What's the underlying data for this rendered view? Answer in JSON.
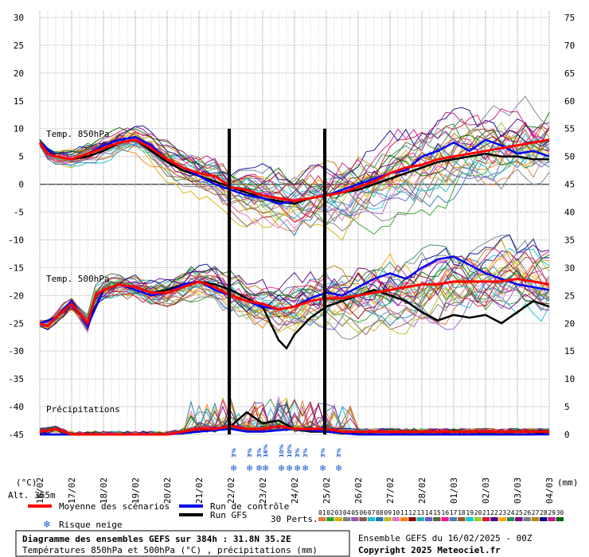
{
  "chart_data": {
    "type": "line",
    "title": "Diagramme des ensembles GEFS sur 384h : 31.8N 35.2E",
    "subtitle": "Températures 850hPa et 500hPa (°C) , précipitations (mm)",
    "run_info": "Ensemble GEFS du 16/02/2025 - 00Z",
    "copyright": "Copyright 2025 Meteociel.fr",
    "altitude": "Alt. 365m",
    "left_unit": "(°C)",
    "right_unit": "(mm)",
    "y_left": {
      "range": [
        -45,
        30
      ],
      "ticks": [
        30,
        25,
        20,
        15,
        10,
        5,
        0,
        -5,
        -10,
        -15,
        -20,
        -25,
        -30,
        -35,
        -40,
        -45
      ]
    },
    "y_right": {
      "range": [
        0,
        75
      ],
      "ticks": [
        75,
        70,
        65,
        60,
        55,
        50,
        45,
        40,
        35,
        30,
        25,
        20,
        15,
        10,
        5,
        0
      ]
    },
    "x_ticks": [
      "16/02",
      "17/02",
      "18/02",
      "19/02",
      "20/02",
      "21/02",
      "22/02",
      "23/02",
      "24/02",
      "25/02",
      "26/02",
      "27/02",
      "28/02",
      "01/03",
      "02/03",
      "03/03",
      "04/03"
    ],
    "panel_labels": {
      "t850": "Temp. 850hPa",
      "t500": "Temp. 500hPa",
      "precip": "Précipitations"
    },
    "vertical_markers": [
      "22/02",
      "25/02"
    ],
    "grid": true,
    "legend": {
      "mean": "Moyenne des scénarios",
      "control": "Run de contrôle",
      "gfs": "Run GFS",
      "snow": "Risque neige",
      "perts": "30 Perts.",
      "pert_labels": [
        "01",
        "02",
        "03",
        "04",
        "05",
        "06",
        "07",
        "08",
        "09",
        "10",
        "11",
        "12",
        "13",
        "14",
        "15",
        "16",
        "17",
        "18",
        "19",
        "20",
        "21",
        "22",
        "23",
        "24",
        "25",
        "26",
        "27",
        "28",
        "29",
        "30"
      ],
      "pert_colors": [
        "#e07b39",
        "#2ca02c",
        "#d4b000",
        "#7f7f7f",
        "#9b59b6",
        "#8c564b",
        "#17becf",
        "#1f77b4",
        "#bcbd22",
        "#e377c2",
        "#ff7f0e",
        "#8b0000",
        "#20b2aa",
        "#6a5acd",
        "#556b2f",
        "#ff1493",
        "#4682b4",
        "#a0522d",
        "#00ced1",
        "#9acd32",
        "#dc143c",
        "#4b0082",
        "#ffa500",
        "#2e8b57",
        "#800080",
        "#708090",
        "#b8860b",
        "#00008b",
        "#c71585",
        "#006400"
      ]
    },
    "snow_risk": [
      {
        "x": 6.1,
        "labels": [
          "3%"
        ]
      },
      {
        "x": 6.6,
        "labels": [
          "3%"
        ]
      },
      {
        "x": 6.9,
        "labels": [
          "3%"
        ]
      },
      {
        "x": 7.1,
        "labels": [
          "16%"
        ]
      },
      {
        "x": 7.6,
        "labels": [
          "10%"
        ]
      },
      {
        "x": 7.85,
        "labels": [
          "10%"
        ]
      },
      {
        "x": 8.1,
        "labels": [
          "3%"
        ]
      },
      {
        "x": 8.35,
        "labels": [
          "3%"
        ]
      },
      {
        "x": 8.9,
        "labels": [
          "3%"
        ]
      },
      {
        "x": 9.4,
        "labels": [
          "3%"
        ]
      }
    ],
    "series": [
      {
        "name": "Moyenne des scénarios",
        "role": "mean",
        "color": "#ff0000",
        "t850": [
          [
            0,
            7.5
          ],
          [
            0.25,
            5.5
          ],
          [
            0.5,
            5
          ],
          [
            1,
            4.5
          ],
          [
            1.5,
            5.5
          ],
          [
            2,
            6.5
          ],
          [
            2.5,
            7.5
          ],
          [
            3,
            8
          ],
          [
            3.5,
            6.5
          ],
          [
            4,
            4.5
          ],
          [
            4.5,
            3
          ],
          [
            5,
            2
          ],
          [
            5.5,
            1.5
          ],
          [
            6,
            -0.5
          ],
          [
            6.5,
            -1
          ],
          [
            7,
            -2
          ],
          [
            7.5,
            -2.5
          ],
          [
            8,
            -3
          ],
          [
            8.5,
            -2.5
          ],
          [
            9,
            -2
          ],
          [
            9.5,
            -1.5
          ],
          [
            10,
            -0.5
          ],
          [
            10.5,
            0.5
          ],
          [
            11,
            2
          ],
          [
            11.5,
            3
          ],
          [
            12,
            3.5
          ],
          [
            12.5,
            4.5
          ],
          [
            13,
            5
          ],
          [
            13.5,
            5.5
          ],
          [
            14,
            6
          ],
          [
            14.5,
            6.5
          ],
          [
            15,
            7
          ],
          [
            15.5,
            7.5
          ],
          [
            16,
            8
          ]
        ],
        "t500": [
          [
            0,
            -25
          ],
          [
            0.25,
            -25.5
          ],
          [
            0.5,
            -24
          ],
          [
            1,
            -21.5
          ],
          [
            1.5,
            -25
          ],
          [
            1.75,
            -20
          ],
          [
            2,
            -19
          ],
          [
            2.5,
            -18
          ],
          [
            3,
            -18.5
          ],
          [
            3.5,
            -19.5
          ],
          [
            4,
            -19.5
          ],
          [
            4.5,
            -18.5
          ],
          [
            5,
            -17.5
          ],
          [
            5.5,
            -18.5
          ],
          [
            6,
            -20
          ],
          [
            6.5,
            -21
          ],
          [
            7,
            -21.5
          ],
          [
            7.5,
            -22.5
          ],
          [
            8,
            -22
          ],
          [
            8.5,
            -21
          ],
          [
            9,
            -20.5
          ],
          [
            9.5,
            -20.5
          ],
          [
            10,
            -20
          ],
          [
            10.5,
            -19.5
          ],
          [
            11,
            -19
          ],
          [
            11.5,
            -18.5
          ],
          [
            12,
            -18
          ],
          [
            12.5,
            -18
          ],
          [
            13,
            -17.5
          ],
          [
            13.5,
            -17.5
          ],
          [
            14,
            -17.5
          ],
          [
            14.5,
            -17.5
          ],
          [
            15,
            -17
          ],
          [
            15.5,
            -17.5
          ],
          [
            16,
            -18
          ]
        ],
        "precip": [
          [
            0,
            0.5
          ],
          [
            0.5,
            1
          ],
          [
            1,
            0
          ],
          [
            2,
            0
          ],
          [
            3,
            0
          ],
          [
            4,
            0
          ],
          [
            4.5,
            0.5
          ],
          [
            5,
            1
          ],
          [
            5.5,
            1
          ],
          [
            6,
            1.5
          ],
          [
            6.5,
            1
          ],
          [
            7,
            1
          ],
          [
            7.5,
            1.5
          ],
          [
            8,
            1
          ],
          [
            8.5,
            1
          ],
          [
            9,
            1
          ],
          [
            9.5,
            0.5
          ],
          [
            10,
            0.5
          ],
          [
            11,
            0.5
          ],
          [
            12,
            0.5
          ],
          [
            13,
            0.5
          ],
          [
            14,
            0.5
          ],
          [
            15,
            0.5
          ],
          [
            16,
            0.5
          ]
        ]
      },
      {
        "name": "Run de contrôle",
        "role": "control",
        "color": "#0000ee",
        "t850": [
          [
            0,
            7.5
          ],
          [
            0.5,
            5
          ],
          [
            1,
            4.5
          ],
          [
            1.5,
            5.5
          ],
          [
            2,
            7
          ],
          [
            2.5,
            8
          ],
          [
            3,
            8.5
          ],
          [
            3.5,
            7
          ],
          [
            4,
            4.5
          ],
          [
            4.5,
            3
          ],
          [
            5,
            1.5
          ],
          [
            5.5,
            0
          ],
          [
            6,
            -1
          ],
          [
            6.5,
            -2
          ],
          [
            7,
            -2.5
          ],
          [
            7.5,
            -3.5
          ],
          [
            8,
            -3
          ],
          [
            8.5,
            -2.5
          ],
          [
            9,
            -2
          ],
          [
            9.5,
            -1
          ],
          [
            10,
            0
          ],
          [
            10.5,
            1
          ],
          [
            11,
            2
          ],
          [
            11.5,
            2.5
          ],
          [
            12,
            5
          ],
          [
            12.5,
            6
          ],
          [
            13,
            7.5
          ],
          [
            13.5,
            6
          ],
          [
            14,
            8
          ],
          [
            14.5,
            7
          ],
          [
            15,
            5.5
          ],
          [
            15.5,
            6
          ],
          [
            16,
            5
          ]
        ],
        "t500": [
          [
            0,
            -25
          ],
          [
            0.5,
            -24
          ],
          [
            1,
            -21
          ],
          [
            1.5,
            -25.5
          ],
          [
            2,
            -19
          ],
          [
            2.5,
            -18
          ],
          [
            3,
            -19
          ],
          [
            3.5,
            -20
          ],
          [
            4,
            -19.5
          ],
          [
            4.5,
            -18
          ],
          [
            5,
            -17.5
          ],
          [
            5.5,
            -19
          ],
          [
            6,
            -20
          ],
          [
            6.5,
            -21
          ],
          [
            7,
            -22
          ],
          [
            7.5,
            -22.5
          ],
          [
            8,
            -22
          ],
          [
            8.5,
            -20.5
          ],
          [
            9,
            -19.5
          ],
          [
            9.5,
            -20
          ],
          [
            10,
            -18.5
          ],
          [
            10.5,
            -17
          ],
          [
            11,
            -16
          ],
          [
            11.5,
            -17
          ],
          [
            12,
            -15
          ],
          [
            12.5,
            -13.5
          ],
          [
            13,
            -13
          ],
          [
            13.5,
            -14.5
          ],
          [
            14,
            -16
          ],
          [
            14.5,
            -17
          ],
          [
            15,
            -18
          ],
          [
            15.5,
            -18.5
          ],
          [
            16,
            -19
          ]
        ],
        "precip": [
          [
            0,
            0
          ],
          [
            1,
            0
          ],
          [
            2,
            0
          ],
          [
            3,
            0
          ],
          [
            4,
            0
          ],
          [
            5,
            0.5
          ],
          [
            6,
            1
          ],
          [
            6.5,
            0.5
          ],
          [
            7,
            0.5
          ],
          [
            8,
            1
          ],
          [
            9,
            0.5
          ],
          [
            10,
            0
          ],
          [
            11,
            0
          ],
          [
            12,
            0
          ],
          [
            13,
            0
          ],
          [
            14,
            0
          ],
          [
            15,
            0
          ],
          [
            16,
            0
          ]
        ]
      },
      {
        "name": "Run GFS",
        "role": "gfs",
        "color": "#000000",
        "t850": [
          [
            0,
            7.5
          ],
          [
            0.5,
            5
          ],
          [
            1,
            4.5
          ],
          [
            1.5,
            5
          ],
          [
            2,
            6
          ],
          [
            2.5,
            7.5
          ],
          [
            3,
            8
          ],
          [
            3.5,
            6
          ],
          [
            4,
            4
          ],
          [
            4.5,
            2.5
          ],
          [
            5,
            1.5
          ],
          [
            5.5,
            0.5
          ],
          [
            6,
            -0.5
          ],
          [
            6.5,
            -1.5
          ],
          [
            7,
            -2.5
          ],
          [
            7.5,
            -3
          ],
          [
            8,
            -3.5
          ],
          [
            8.5,
            -2.5
          ],
          [
            9,
            -2
          ],
          [
            9.5,
            -1.5
          ],
          [
            10,
            -1
          ],
          [
            10.5,
            0
          ],
          [
            11,
            1
          ],
          [
            11.5,
            2
          ],
          [
            12,
            3
          ],
          [
            12.5,
            4
          ],
          [
            13,
            4.5
          ],
          [
            13.5,
            5
          ],
          [
            14,
            5.5
          ],
          [
            14.5,
            5
          ],
          [
            15,
            5
          ],
          [
            15.5,
            4.5
          ],
          [
            16,
            4.5
          ]
        ],
        "t500": [
          [
            0,
            -25
          ],
          [
            0.5,
            -24
          ],
          [
            1,
            -21.5
          ],
          [
            1.5,
            -25
          ],
          [
            2,
            -19
          ],
          [
            2.5,
            -18
          ],
          [
            3,
            -18.5
          ],
          [
            3.5,
            -19.5
          ],
          [
            4,
            -19
          ],
          [
            4.5,
            -18
          ],
          [
            5,
            -17.5
          ],
          [
            5.5,
            -18
          ],
          [
            6,
            -19
          ],
          [
            6.5,
            -20.5
          ],
          [
            7,
            -22
          ],
          [
            7.5,
            -28
          ],
          [
            7.75,
            -29.5
          ],
          [
            8,
            -27
          ],
          [
            8.5,
            -24
          ],
          [
            9,
            -22
          ],
          [
            9.5,
            -21
          ],
          [
            10,
            -20
          ],
          [
            10.5,
            -19
          ],
          [
            11,
            -20
          ],
          [
            11.5,
            -21
          ],
          [
            12,
            -23
          ],
          [
            12.5,
            -24.5
          ],
          [
            13,
            -23.5
          ],
          [
            13.5,
            -24
          ],
          [
            14,
            -23.5
          ],
          [
            14.5,
            -25
          ],
          [
            15,
            -23
          ],
          [
            15.5,
            -21
          ],
          [
            16,
            -22
          ]
        ],
        "precip": [
          [
            0,
            0
          ],
          [
            1,
            0
          ],
          [
            2,
            0
          ],
          [
            3,
            0
          ],
          [
            4,
            0
          ],
          [
            5,
            0.5
          ],
          [
            6,
            1.5
          ],
          [
            6.5,
            4
          ],
          [
            7,
            2
          ],
          [
            7.5,
            2.5
          ],
          [
            8,
            1
          ],
          [
            8.5,
            0.5
          ],
          [
            9,
            0.5
          ],
          [
            10,
            0
          ],
          [
            11,
            0
          ],
          [
            12,
            0
          ],
          [
            13,
            0
          ],
          [
            14,
            0
          ],
          [
            15,
            0
          ],
          [
            15.5,
            0
          ],
          [
            16,
            0.5
          ]
        ]
      }
    ]
  }
}
